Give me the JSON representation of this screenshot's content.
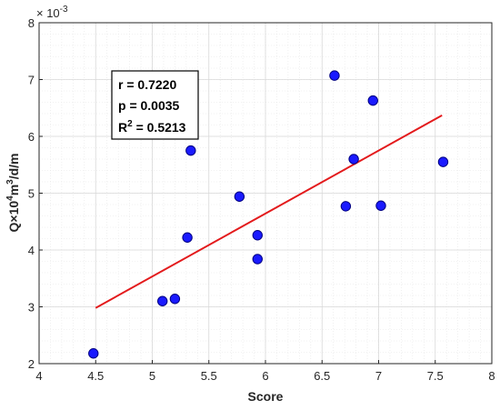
{
  "chart_data": {
    "type": "scatter",
    "title": "",
    "xlabel": "Score",
    "ylabel": "Q×10⁴m³/d/m",
    "ylabel_parts": {
      "base": "Q×10",
      "exp1": "4",
      "mid": "m",
      "exp2": "3",
      "tail": "/d/m"
    },
    "y_exponent_label": {
      "base": "× 10",
      "exp": "-3"
    },
    "xlim": [
      4,
      8
    ],
    "ylim": [
      2,
      8
    ],
    "x_ticks": [
      "4",
      "4.5",
      "5",
      "5.5",
      "6",
      "6.5",
      "7",
      "7.5",
      "8"
    ],
    "y_ticks": [
      "2",
      "3",
      "4",
      "5",
      "6",
      "7",
      "8"
    ],
    "x_tick_values": [
      4,
      4.5,
      5,
      5.5,
      6,
      6.5,
      7,
      7.5,
      8
    ],
    "y_tick_values": [
      2,
      3,
      4,
      5,
      6,
      7,
      8
    ],
    "grid": true,
    "points": [
      {
        "x": 4.48,
        "y": 2.18
      },
      {
        "x": 5.09,
        "y": 3.1
      },
      {
        "x": 5.2,
        "y": 3.14
      },
      {
        "x": 5.31,
        "y": 4.22
      },
      {
        "x": 5.34,
        "y": 5.75
      },
      {
        "x": 5.77,
        "y": 4.94
      },
      {
        "x": 5.93,
        "y": 4.26
      },
      {
        "x": 5.93,
        "y": 3.84
      },
      {
        "x": 6.61,
        "y": 7.07
      },
      {
        "x": 6.71,
        "y": 4.77
      },
      {
        "x": 6.78,
        "y": 5.6
      },
      {
        "x": 6.95,
        "y": 6.63
      },
      {
        "x": 7.02,
        "y": 4.78
      },
      {
        "x": 7.57,
        "y": 5.55
      }
    ],
    "fit_line": {
      "x": [
        4.5,
        7.56
      ],
      "y": [
        2.98,
        6.37
      ]
    },
    "stats": [
      "r = 0.7220",
      "p = 0.0035"
    ],
    "r2": {
      "base": "R",
      "exp": "2",
      "value": " = 0.5213"
    },
    "colors": {
      "marker_fill": "#1a1aff",
      "marker_edge": "#000080",
      "fit_line": "#e31a1c",
      "grid_major": "#d9d9d9",
      "grid_minor": "#e6e6e6",
      "axis": "#262626"
    }
  }
}
